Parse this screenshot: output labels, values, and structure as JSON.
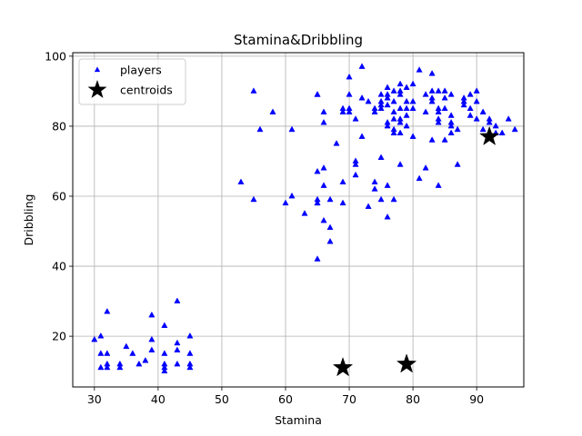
{
  "chart_data": {
    "type": "scatter",
    "title": "Stamina&Dribbling",
    "xlabel": "Stamina",
    "ylabel": "Dribbling",
    "xlim": [
      26.6,
      97.4
    ],
    "ylim": [
      5.5,
      101
    ],
    "xticks": [
      30,
      40,
      50,
      60,
      70,
      80,
      90
    ],
    "yticks": [
      20,
      40,
      60,
      80,
      100
    ],
    "grid": true,
    "legend_position": "top-left",
    "series": [
      {
        "name": "players",
        "marker": "triangle",
        "color": "#0000ff",
        "x": [
          30,
          31,
          31,
          31,
          32,
          32,
          32,
          32,
          34,
          34,
          35,
          36,
          37,
          38,
          39,
          39,
          39,
          41,
          41,
          41,
          41,
          41,
          43,
          43,
          43,
          43,
          45,
          45,
          45,
          45,
          53,
          55,
          55,
          56,
          58,
          60,
          61,
          61,
          63,
          65,
          65,
          65,
          65,
          65,
          65,
          65,
          66,
          66,
          66,
          66,
          66,
          67,
          67,
          67,
          68,
          69,
          69,
          69,
          69,
          70,
          70,
          70,
          70,
          71,
          71,
          71,
          71,
          72,
          72,
          72,
          73,
          73,
          74,
          74,
          74,
          74,
          75,
          75,
          75,
          75,
          75,
          75,
          76,
          76,
          76,
          76,
          76,
          76,
          76,
          76,
          77,
          77,
          77,
          77,
          77,
          77,
          77,
          78,
          78,
          78,
          78,
          78,
          78,
          78,
          78,
          79,
          79,
          79,
          79,
          79,
          80,
          80,
          80,
          80,
          81,
          81,
          82,
          82,
          82,
          83,
          83,
          83,
          83,
          83,
          84,
          84,
          84,
          84,
          84,
          84,
          85,
          85,
          85,
          85,
          86,
          86,
          86,
          86,
          86,
          87,
          87,
          88,
          88,
          88,
          89,
          89,
          89,
          90,
          90,
          90,
          91,
          91,
          92,
          92,
          92,
          93,
          93,
          94,
          95,
          96
        ],
        "y": [
          19,
          20,
          11,
          15,
          27,
          12,
          15,
          11,
          12,
          11,
          17,
          15,
          12,
          13,
          26,
          19,
          16,
          23,
          15,
          12,
          11,
          10,
          30,
          18,
          16,
          12,
          20,
          15,
          12,
          11,
          64,
          90,
          59,
          79,
          84,
          58,
          79,
          60,
          55,
          89,
          67,
          59,
          58,
          42,
          89,
          58,
          84,
          81,
          68,
          63,
          53,
          51,
          59,
          47,
          75,
          58,
          64,
          85,
          84,
          94,
          89,
          85,
          84,
          70,
          69,
          66,
          82,
          77,
          97,
          88,
          57,
          87,
          64,
          62,
          85,
          84,
          89,
          87,
          86,
          85,
          71,
          59,
          91,
          89,
          88,
          86,
          81,
          80,
          63,
          54,
          90,
          87,
          84,
          82,
          79,
          78,
          59,
          92,
          90,
          89,
          85,
          82,
          81,
          78,
          69,
          91,
          87,
          85,
          83,
          80,
          92,
          87,
          85,
          77,
          96,
          65,
          84,
          89,
          68,
          95,
          90,
          88,
          87,
          76,
          90,
          85,
          84,
          82,
          81,
          63,
          90,
          88,
          85,
          76,
          89,
          83,
          81,
          80,
          78,
          69,
          79,
          88,
          87,
          86,
          89,
          85,
          83,
          90,
          87,
          82,
          84,
          79,
          82,
          81,
          78,
          78,
          80,
          78,
          82,
          79
        ]
      },
      {
        "name": "centroids",
        "marker": "star",
        "color": "#000000",
        "x": [
          92,
          69,
          79
        ],
        "y": [
          77,
          11,
          12
        ]
      }
    ]
  }
}
